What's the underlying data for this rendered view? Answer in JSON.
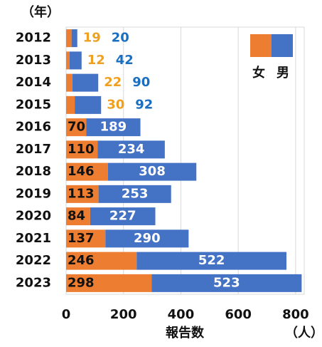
{
  "chart_data": {
    "type": "hbar_stacked",
    "y_unit_label": "（年）",
    "x_label": "報告数",
    "x_unit_label": "（人）",
    "categories": [
      "2012",
      "2013",
      "2014",
      "2015",
      "2016",
      "2017",
      "2018",
      "2019",
      "2020",
      "2021",
      "2022",
      "2023"
    ],
    "series": [
      {
        "name": "女",
        "color": "#ed7d31",
        "values": [
          19,
          12,
          22,
          30,
          70,
          110,
          146,
          113,
          84,
          137,
          246,
          298
        ]
      },
      {
        "name": "男",
        "color": "#4472c4",
        "values": [
          20,
          42,
          90,
          92,
          189,
          234,
          308,
          253,
          227,
          290,
          522,
          523
        ]
      }
    ],
    "xlim": [
      0,
      830
    ],
    "xticks": [
      0,
      200,
      400,
      600,
      800
    ],
    "grid": true
  }
}
